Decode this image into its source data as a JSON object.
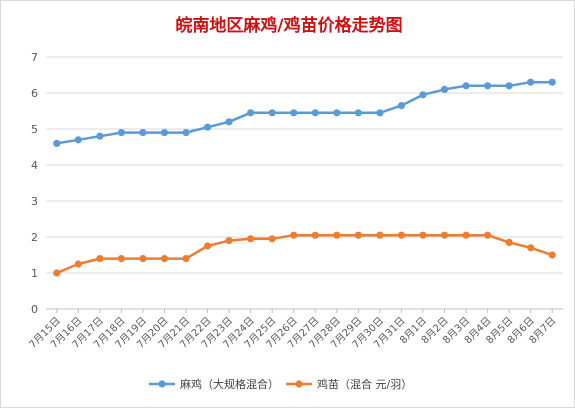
{
  "chart_data": {
    "type": "line",
    "title": "皖南地区麻鸡/鸡苗价格走势图",
    "xlabel": "",
    "ylabel": "",
    "categories": [
      "7月15日",
      "7月16日",
      "7月17日",
      "7月18日",
      "7月19日",
      "7月20日",
      "7月21日",
      "7月22日",
      "7月23日",
      "7月24日",
      "7月25日",
      "7月26日",
      "7月27日",
      "7月28日",
      "7月29日",
      "7月30日",
      "7月31日",
      "8月1日",
      "8月2日",
      "8月3日",
      "8月4日",
      "8月5日",
      "8月6日",
      "8月7日"
    ],
    "ylim": [
      0,
      7
    ],
    "yticks": [
      "0",
      "1",
      "2",
      "3",
      "4",
      "5",
      "6",
      "7"
    ],
    "grid": true,
    "legend_position": "bottom",
    "series": [
      {
        "name": "麻鸡（大规格混合）",
        "color": "#5b9bd5",
        "values": [
          4.6,
          4.7,
          4.8,
          4.9,
          4.9,
          4.9,
          4.9,
          5.05,
          5.2,
          5.45,
          5.45,
          5.45,
          5.45,
          5.45,
          5.45,
          5.45,
          5.65,
          5.95,
          6.1,
          6.2,
          6.2,
          6.2,
          6.3,
          6.3
        ]
      },
      {
        "name": "鸡苗（混合 元/羽）",
        "color": "#ed7d31",
        "values": [
          1.0,
          1.25,
          1.4,
          1.4,
          1.4,
          1.4,
          1.4,
          1.75,
          1.9,
          1.95,
          1.95,
          2.05,
          2.05,
          2.05,
          2.05,
          2.05,
          2.05,
          2.05,
          2.05,
          2.05,
          2.05,
          1.85,
          1.7,
          1.5
        ]
      }
    ]
  }
}
